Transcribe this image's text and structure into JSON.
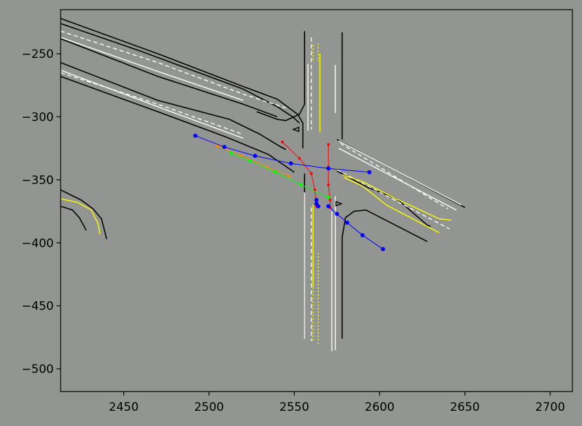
{
  "chart_data": {
    "type": "scatter",
    "title": "",
    "xlabel": "",
    "ylabel": "",
    "xlim": [
      2413,
      2713
    ],
    "ylim": [
      -518,
      -215
    ],
    "xticks": [
      2450,
      2500,
      2550,
      2600,
      2650,
      2700
    ],
    "yticks": [
      -250,
      -300,
      -350,
      -400,
      -450,
      -500
    ],
    "xtick_labels": [
      "2450",
      "2500",
      "2550",
      "2600",
      "2650",
      "2700"
    ],
    "ytick_labels": [
      "−250",
      "−300",
      "−350",
      "−400",
      "−450",
      "−500"
    ],
    "grid": false,
    "colors": {
      "background": "#939592",
      "road_edge": "#000000",
      "lane_marking": "#ffffff",
      "center_line": "#ffff00",
      "trajectory_red": "#ff0000",
      "trajectory_green": "#00ff00",
      "trajectory_blue": "#0000ff",
      "trajectory_orange": "#ff8c00"
    },
    "map": {
      "road_edges": [
        [
          [
            2413,
            -222
          ],
          [
            2470,
            -250
          ],
          [
            2520,
            -276
          ],
          [
            2540,
            -286
          ],
          [
            2552,
            -298
          ],
          [
            2555,
            -305
          ],
          [
            2555,
            -325
          ]
        ],
        [
          [
            2413,
            -226
          ],
          [
            2460,
            -248
          ],
          [
            2520,
            -278
          ],
          [
            2540,
            -292
          ],
          [
            2549,
            -300
          ],
          [
            2553,
            -305
          ]
        ],
        [
          [
            2413,
            -238
          ],
          [
            2470,
            -268
          ],
          [
            2520,
            -290
          ],
          [
            2540,
            -300
          ]
        ],
        [
          [
            2413,
            -257
          ],
          [
            2470,
            -287
          ],
          [
            2512,
            -302
          ],
          [
            2530,
            -314
          ],
          [
            2541,
            -323
          ],
          [
            2545,
            -326
          ]
        ],
        [
          [
            2413,
            -268
          ],
          [
            2470,
            -296
          ],
          [
            2510,
            -316
          ],
          [
            2535,
            -330
          ],
          [
            2550,
            -344
          ]
        ],
        [
          [
            2556,
            -232
          ],
          [
            2556,
            -290
          ],
          [
            2553,
            -298
          ],
          [
            2545,
            -303
          ],
          [
            2540,
            -302
          ],
          [
            2528,
            -296
          ]
        ],
        [
          [
            2578,
            -233
          ],
          [
            2578,
            -318
          ]
        ],
        [
          [
            2575,
            -318
          ],
          [
            2650,
            -372
          ]
        ],
        [
          [
            2575,
            -343
          ],
          [
            2593,
            -356
          ],
          [
            2610,
            -365
          ],
          [
            2628,
            -386
          ],
          [
            2630,
            -387
          ]
        ],
        [
          [
            2556,
            -345
          ],
          [
            2556,
            -475
          ]
        ],
        [
          [
            2578,
            -476
          ],
          [
            2578,
            -396
          ],
          [
            2580,
            -380
          ],
          [
            2585,
            -375
          ],
          [
            2592,
            -374
          ],
          [
            2628,
            -399
          ]
        ],
        [
          [
            2413,
            -358
          ],
          [
            2425,
            -366
          ],
          [
            2432,
            -373
          ],
          [
            2437,
            -381
          ],
          [
            2440,
            -397
          ]
        ],
        [
          [
            2413,
            -371
          ],
          [
            2420,
            -374
          ],
          [
            2424,
            -380
          ],
          [
            2428,
            -390
          ]
        ]
      ],
      "lane_markings": [
        [
          [
            2413,
            -237
          ],
          [
            2470,
            -264
          ],
          [
            2520,
            -287
          ]
        ],
        [
          [
            2413,
            -263
          ],
          [
            2470,
            -292
          ],
          [
            2520,
            -317
          ]
        ],
        [
          [
            2558,
            -258
          ],
          [
            2558,
            -311
          ]
        ],
        [
          [
            2574,
            -259
          ],
          [
            2574,
            -297
          ]
        ],
        [
          [
            2576,
            -319
          ],
          [
            2648,
            -370
          ]
        ],
        [
          [
            2576,
            -325
          ],
          [
            2645,
            -374
          ]
        ],
        [
          [
            2556,
            -360
          ],
          [
            2556,
            -476
          ]
        ],
        [
          [
            2572,
            -375
          ],
          [
            2572,
            -486
          ]
        ],
        [
          [
            2574,
            -363
          ],
          [
            2574,
            -485
          ]
        ]
      ],
      "dashed_lane_markings": [
        [
          [
            2413,
            -232
          ],
          [
            2470,
            -257
          ],
          [
            2520,
            -282
          ],
          [
            2545,
            -293
          ]
        ],
        [
          [
            2413,
            -265
          ],
          [
            2470,
            -290
          ],
          [
            2520,
            -314
          ]
        ],
        [
          [
            2560,
            -237
          ],
          [
            2560,
            -310
          ]
        ],
        [
          [
            2577,
            -321
          ],
          [
            2640,
            -373
          ]
        ],
        [
          [
            2575,
            -342
          ],
          [
            2641,
            -389
          ]
        ],
        [
          [
            2560,
            -372
          ],
          [
            2560,
            -478
          ]
        ]
      ],
      "center_lines": [
        [
          [
            2565,
            -250
          ],
          [
            2565,
            -312
          ]
        ],
        [
          [
            2561,
            -370
          ],
          [
            2561,
            -435
          ]
        ],
        [
          [
            2578,
            -346
          ],
          [
            2591,
            -352
          ],
          [
            2608,
            -364
          ],
          [
            2635,
            -381
          ],
          [
            2642,
            -382
          ]
        ],
        [
          [
            2579,
            -348
          ],
          [
            2590,
            -355
          ],
          [
            2604,
            -370
          ],
          [
            2635,
            -392
          ]
        ],
        [
          [
            2413,
            -365
          ],
          [
            2423,
            -368
          ],
          [
            2431,
            -374
          ],
          [
            2435,
            -385
          ],
          [
            2436,
            -393
          ]
        ]
      ],
      "dotted_center_lines": [
        [
          [
            2561,
            -243
          ],
          [
            2561,
            -255
          ]
        ],
        [
          [
            2564,
            -242
          ],
          [
            2564,
            -256
          ]
        ],
        [
          [
            2561,
            -408
          ],
          [
            2561,
            -479
          ]
        ],
        [
          [
            2564,
            -408
          ],
          [
            2564,
            -480
          ]
        ]
      ],
      "markers": [
        {
          "name": "left-arrow-marker",
          "x": 2551,
          "y": -310
        },
        {
          "name": "right-arrow-marker",
          "x": 2576,
          "y": -369
        }
      ]
    },
    "series": [
      {
        "color": "#ff0000",
        "marker_size": 2,
        "points": [
          [
            2543,
            -320
          ],
          [
            2553,
            -333
          ],
          [
            2560,
            -345
          ],
          [
            2562,
            -358
          ],
          [
            2563,
            -371
          ]
        ]
      },
      {
        "color": "#ff0000",
        "marker_size": 2,
        "points": [
          [
            2570,
            -322
          ],
          [
            2570,
            -340
          ],
          [
            2570,
            -354
          ],
          [
            2571,
            -366
          ],
          [
            2571,
            -372
          ]
        ]
      },
      {
        "color": "#ff8c00",
        "marker_size": 2,
        "points": [
          [
            2505,
            -323
          ],
          [
            2519,
            -331
          ],
          [
            2534,
            -340
          ],
          [
            2547,
            -347
          ]
        ]
      },
      {
        "color": "#00ff00",
        "marker_size": 2.5,
        "points": [
          [
            2513,
            -329
          ],
          [
            2524,
            -335
          ],
          [
            2539,
            -344
          ],
          [
            2554,
            -354
          ],
          [
            2570,
            -364
          ]
        ]
      },
      {
        "color": "#0000ff",
        "marker_size": 3,
        "points": [
          [
            2492,
            -315
          ],
          [
            2509,
            -324
          ],
          [
            2527,
            -331
          ],
          [
            2548,
            -337
          ],
          [
            2570,
            -341
          ],
          [
            2594,
            -344
          ]
        ]
      },
      {
        "color": "#0000ff",
        "marker_size": 3,
        "points": [
          [
            2563,
            -366
          ],
          [
            2563,
            -369
          ],
          [
            2564,
            -371
          ]
        ]
      },
      {
        "color": "#0000ff",
        "marker_size": 3,
        "points": [
          [
            2570,
            -371
          ],
          [
            2575,
            -377
          ],
          [
            2581,
            -384
          ],
          [
            2590,
            -394
          ],
          [
            2602,
            -405
          ]
        ]
      }
    ]
  }
}
